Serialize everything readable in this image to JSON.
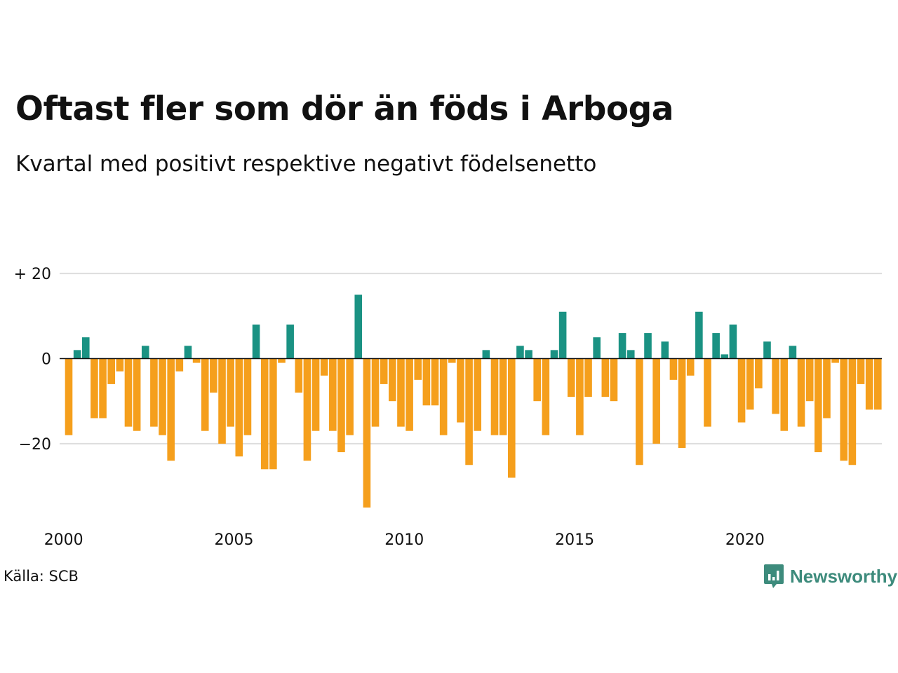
{
  "title": "Oftast fler som dör än föds i Arboga",
  "subtitle": "Kvartal med positivt respektive negativt födelsenetto",
  "source": "Källa: SCB",
  "brand": {
    "name": "Newsworthy",
    "icon": "chat-bubble-bar-chart-icon",
    "color": "#3d8b7c"
  },
  "colors": {
    "positive": "#1a9283",
    "negative": "#f59f1c",
    "grid": "#dddddd",
    "zero_line": "#111111"
  },
  "chart_data": {
    "type": "bar",
    "title": "Oftast fler som dör än föds i Arboga",
    "subtitle": "Kvartal med positivt respektive negativt födelsenetto",
    "xlabel": "",
    "ylabel": "",
    "x_start": "2000 Q1",
    "x_frequency": "quarter",
    "x_ticks": [
      "2000",
      "2005",
      "2010",
      "2015",
      "2020"
    ],
    "y_ticks": [
      {
        "value": 20,
        "label": "+ 20"
      },
      {
        "value": 0,
        "label": "0"
      },
      {
        "value": -20,
        "label": "−20"
      }
    ],
    "ylim": [
      -36,
      20
    ],
    "grid": true,
    "values": [
      -18,
      2,
      5,
      -14,
      -14,
      -6,
      -3,
      -16,
      -17,
      3,
      -16,
      -18,
      -24,
      -3,
      3,
      -1,
      -17,
      -8,
      -20,
      -16,
      -23,
      -18,
      8,
      -26,
      -26,
      -1,
      8,
      -8,
      -24,
      -17,
      -4,
      -17,
      -22,
      -18,
      15,
      -35,
      -16,
      -6,
      -10,
      -16,
      -17,
      -5,
      -11,
      -11,
      -18,
      -1,
      -15,
      -25,
      -17,
      2,
      -18,
      -18,
      -28,
      3,
      2,
      -10,
      -18,
      2,
      11,
      -9,
      -18,
      -9,
      5,
      -9,
      -10,
      6,
      2,
      -25,
      6,
      -20,
      4,
      -5,
      -21,
      -4,
      11,
      -16,
      6,
      1,
      8,
      -15,
      -12,
      -7,
      4,
      -13,
      -17,
      3,
      -16,
      -10,
      -22,
      -14,
      -1,
      -24,
      -25,
      -6,
      -12,
      -12
    ]
  }
}
